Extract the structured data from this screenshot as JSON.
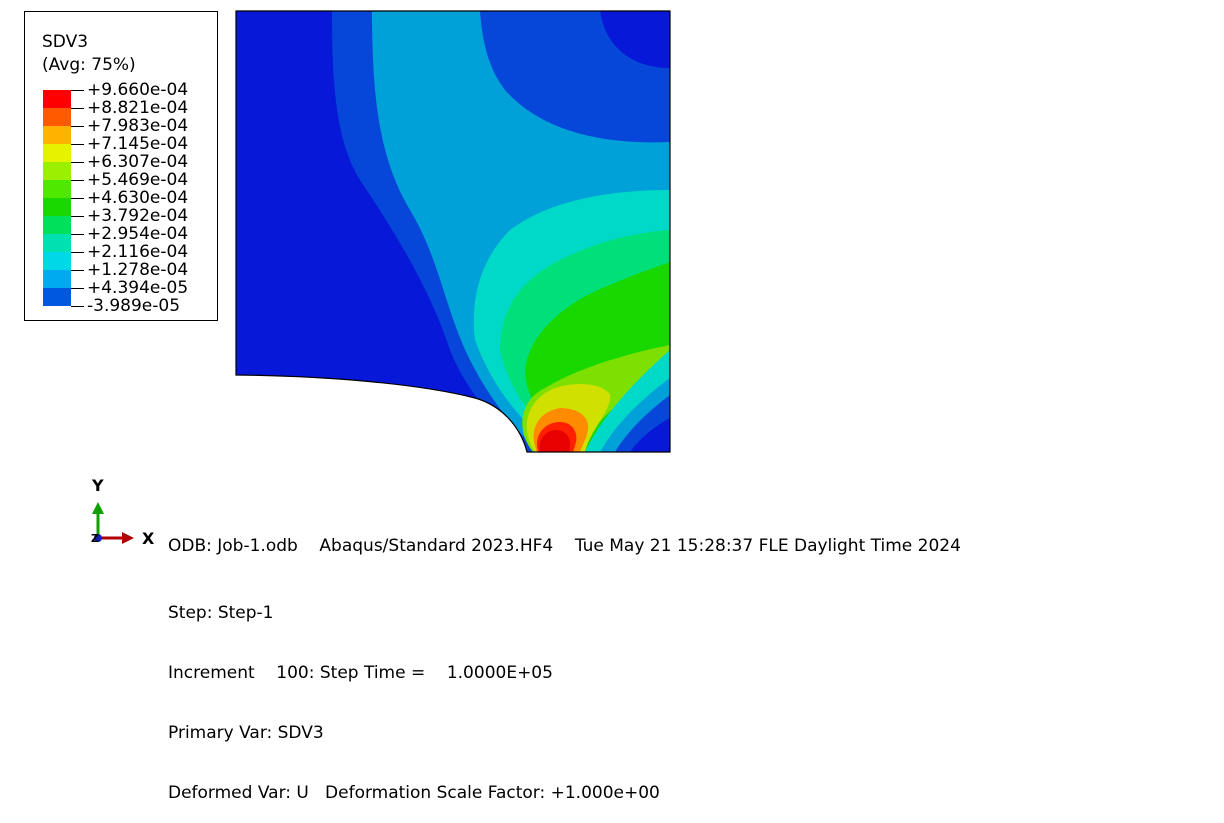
{
  "legend": {
    "title": "SDV3",
    "subtitle": "(Avg: 75%)",
    "levels": [
      {
        "label": "+9.660e-04",
        "color": "#ff0000"
      },
      {
        "label": "+8.821e-04",
        "color": "#ff5a00"
      },
      {
        "label": "+7.983e-04",
        "color": "#ffb200"
      },
      {
        "label": "+7.145e-04",
        "color": "#e5f200"
      },
      {
        "label": "+6.307e-04",
        "color": "#9af000"
      },
      {
        "label": "+5.469e-04",
        "color": "#4fe800"
      },
      {
        "label": "+4.630e-04",
        "color": "#18d800"
      },
      {
        "label": "+3.792e-04",
        "color": "#00e05a"
      },
      {
        "label": "+2.954e-04",
        "color": "#00e0b0"
      },
      {
        "label": "+2.116e-04",
        "color": "#00d8e8"
      },
      {
        "label": "+1.278e-04",
        "color": "#00aaf0"
      },
      {
        "label": "+4.394e-05",
        "color": "#0058e0"
      },
      {
        "label": "-3.989e-05",
        "color": "#0014e8"
      }
    ]
  },
  "contour_colors": {
    "c1": "#0818d8",
    "c2": "#0646d8",
    "c3": "#00a0d8",
    "c4": "#00d8c8",
    "c5": "#00e07a",
    "c6": "#18d800",
    "c7": "#7ee000",
    "c8": "#d0e000",
    "c9": "#ff8c00",
    "c10": "#ff2000",
    "c11": "#e80000"
  },
  "triad": {
    "y_label": "Y",
    "x_label": "X",
    "z_label": "Z"
  },
  "info": {
    "line1": "ODB: Job-1.odb    Abaqus/Standard 2023.HF4    Tue May 21 15:28:37 FLE Daylight Time 2024",
    "line2": "Step: Step-1",
    "line3": "Increment    100: Step Time =    1.0000E+05",
    "line4": "Primary Var: SDV3",
    "line5": "Deformed Var: U   Deformation Scale Factor: +1.000e+00"
  }
}
